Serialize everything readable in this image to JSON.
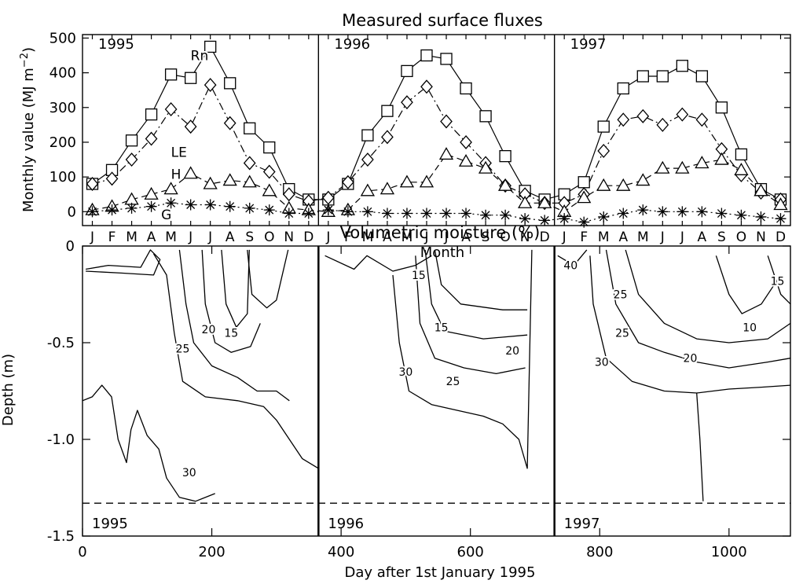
{
  "chart_data": [
    {
      "type": "line",
      "title": "Measured surface fluxes",
      "xlabel": "Month",
      "ylabel": "Monthly value (MJ m",
      "ylabel_sup": "−2",
      "ylabel_close": ")",
      "ylim": [
        -40,
        510
      ],
      "yticks": [
        0,
        100,
        200,
        300,
        400,
        500
      ],
      "month_labels": [
        "J",
        "F",
        "M",
        "A",
        "M",
        "J",
        "J",
        "A",
        "S",
        "O",
        "N",
        "D"
      ],
      "years": [
        "1995",
        "1996",
        "1997"
      ],
      "series": [
        {
          "name": "Rn",
          "marker": "square",
          "dash": "solid",
          "values": [
            80,
            120,
            205,
            280,
            395,
            385,
            475,
            370,
            240,
            185,
            65,
            35,
            35,
            80,
            220,
            290,
            405,
            450,
            440,
            355,
            275,
            160,
            60,
            35,
            50,
            85,
            245,
            355,
            390,
            390,
            420,
            390,
            300,
            165,
            65,
            35
          ]
        },
        {
          "name": "LE",
          "marker": "diamond",
          "dash": "dashdot",
          "values": [
            80,
            95,
            150,
            210,
            295,
            245,
            365,
            255,
            140,
            115,
            50,
            30,
            40,
            85,
            150,
            215,
            315,
            360,
            260,
            200,
            140,
            75,
            50,
            25,
            25,
            50,
            175,
            265,
            275,
            250,
            280,
            265,
            180,
            105,
            55,
            35
          ]
        },
        {
          "name": "H",
          "marker": "triangle",
          "dash": "dashed",
          "values": [
            5,
            15,
            35,
            50,
            65,
            110,
            80,
            90,
            85,
            60,
            10,
            5,
            0,
            5,
            60,
            65,
            85,
            85,
            165,
            145,
            125,
            75,
            25,
            25,
            0,
            40,
            75,
            75,
            90,
            125,
            125,
            140,
            150,
            120,
            60,
            20
          ]
        },
        {
          "name": "G",
          "marker": "star",
          "dash": "dotted",
          "values": [
            0,
            5,
            10,
            15,
            25,
            20,
            20,
            15,
            10,
            5,
            -5,
            -5,
            5,
            0,
            0,
            -5,
            -5,
            -5,
            -5,
            -5,
            -10,
            -10,
            -20,
            -25,
            -20,
            -30,
            -15,
            -5,
            5,
            0,
            0,
            0,
            -5,
            -10,
            -15,
            -20
          ]
        }
      ]
    },
    {
      "type": "contour",
      "title": "Volumetric moisture (%)",
      "xlabel": "Day after 1st January 1995",
      "ylabel": "Depth (m)",
      "xlim": [
        0,
        1095
      ],
      "ylim": [
        -1.5,
        0
      ],
      "xticks": [
        0,
        200,
        400,
        600,
        800,
        1000
      ],
      "yticks": [
        0,
        -0.5,
        -1.0,
        -1.5
      ],
      "ytick_labels": [
        "0",
        "-0.5",
        "-1.0",
        "-1.5"
      ],
      "year_boundaries": [
        365,
        730
      ],
      "year_labels": [
        "1995",
        "1996",
        "1997"
      ],
      "reference_depth": -1.33,
      "contour_labels": [
        {
          "text": "15",
          "day": 230,
          "depth": -0.45
        },
        {
          "text": "20",
          "day": 195,
          "depth": -0.43
        },
        {
          "text": "25",
          "day": 155,
          "depth": -0.53
        },
        {
          "text": "30",
          "day": 165,
          "depth": -1.17
        },
        {
          "text": "15",
          "day": 520,
          "depth": -0.15
        },
        {
          "text": "15",
          "day": 555,
          "depth": -0.42
        },
        {
          "text": "20",
          "day": 665,
          "depth": -0.54
        },
        {
          "text": "25",
          "day": 573,
          "depth": -0.7
        },
        {
          "text": "30",
          "day": 500,
          "depth": -0.65
        },
        {
          "text": "40",
          "day": 755,
          "depth": -0.1
        },
        {
          "text": "25",
          "day": 832,
          "depth": -0.25
        },
        {
          "text": "25",
          "day": 835,
          "depth": -0.45
        },
        {
          "text": "30",
          "day": 803,
          "depth": -0.6
        },
        {
          "text": "20",
          "day": 940,
          "depth": -0.58
        },
        {
          "text": "10",
          "day": 1032,
          "depth": -0.42
        },
        {
          "text": "15",
          "day": 1075,
          "depth": -0.18
        }
      ],
      "contours": [
        {
          "level": "40",
          "points": [
            [
              5,
              -0.12
            ],
            [
              40,
              -0.1
            ],
            [
              90,
              -0.11
            ],
            [
              105,
              -0.02
            ],
            [
              120,
              -0.07
            ],
            [
              110,
              -0.15
            ],
            [
              60,
              -0.14
            ],
            [
              5,
              -0.13
            ]
          ]
        },
        {
          "level": "30",
          "points": [
            [
              110,
              -0.04
            ],
            [
              130,
              -0.15
            ],
            [
              142,
              -0.45
            ],
            [
              155,
              -0.7
            ],
            [
              190,
              -0.78
            ],
            [
              240,
              -0.8
            ],
            [
              280,
              -0.83
            ],
            [
              300,
              -0.9
            ],
            [
              320,
              -1.0
            ],
            [
              340,
              -1.1
            ],
            [
              365,
              -1.15
            ]
          ]
        },
        {
          "level": "25",
          "points": [
            [
              150,
              -0.02
            ],
            [
              160,
              -0.3
            ],
            [
              172,
              -0.5
            ],
            [
              200,
              -0.62
            ],
            [
              240,
              -0.68
            ],
            [
              270,
              -0.75
            ],
            [
              300,
              -0.75
            ],
            [
              320,
              -0.8
            ]
          ]
        },
        {
          "level": "20",
          "points": [
            [
              185,
              -0.02
            ],
            [
              190,
              -0.3
            ],
            [
              205,
              -0.5
            ],
            [
              230,
              -0.55
            ],
            [
              260,
              -0.52
            ],
            [
              275,
              -0.4
            ]
          ]
        },
        {
          "level": "15",
          "points": [
            [
              215,
              -0.02
            ],
            [
              222,
              -0.3
            ],
            [
              238,
              -0.42
            ],
            [
              255,
              -0.35
            ],
            [
              258,
              -0.02
            ]
          ]
        },
        {
          "level": "30",
          "points": [
            [
              0,
              -0.8
            ],
            [
              15,
              -0.78
            ],
            [
              30,
              -0.72
            ],
            [
              45,
              -0.78
            ],
            [
              55,
              -1.0
            ],
            [
              68,
              -1.12
            ],
            [
              75,
              -0.95
            ],
            [
              85,
              -0.85
            ],
            [
              100,
              -0.98
            ],
            [
              118,
              -1.05
            ],
            [
              130,
              -1.2
            ],
            [
              150,
              -1.3
            ],
            [
              175,
              -1.32
            ],
            [
              205,
              -1.28
            ]
          ]
        },
        {
          "level": "30",
          "points": [
            [
              255,
              -0.02
            ],
            [
              262,
              -0.25
            ],
            [
              285,
              -0.32
            ],
            [
              300,
              -0.28
            ],
            [
              318,
              -0.02
            ]
          ]
        },
        {
          "level": "30",
          "points": [
            [
              375,
              -0.05
            ],
            [
              420,
              -0.12
            ],
            [
              440,
              -0.05
            ],
            [
              480,
              -0.13
            ],
            [
              515,
              -0.1
            ],
            [
              540,
              -0.05
            ]
          ]
        },
        {
          "level": "30",
          "points": [
            [
              480,
              -0.15
            ],
            [
              490,
              -0.5
            ],
            [
              505,
              -0.75
            ],
            [
              540,
              -0.82
            ],
            [
              580,
              -0.85
            ],
            [
              620,
              -0.88
            ],
            [
              650,
              -0.92
            ],
            [
              675,
              -1.0
            ],
            [
              688,
              -1.15
            ],
            [
              692,
              -0.5
            ],
            [
              695,
              -0.02
            ]
          ]
        },
        {
          "level": "25",
          "points": [
            [
              515,
              -0.05
            ],
            [
              522,
              -0.4
            ],
            [
              545,
              -0.58
            ],
            [
              590,
              -0.63
            ],
            [
              640,
              -0.66
            ],
            [
              685,
              -0.63
            ]
          ]
        },
        {
          "level": "20",
          "points": [
            [
              530,
              -0.02
            ],
            [
              540,
              -0.3
            ],
            [
              560,
              -0.44
            ],
            [
              620,
              -0.48
            ],
            [
              688,
              -0.46
            ]
          ]
        },
        {
          "level": "15",
          "points": [
            [
              545,
              -0.02
            ],
            [
              555,
              -0.2
            ],
            [
              585,
              -0.3
            ],
            [
              650,
              -0.33
            ],
            [
              688,
              -0.33
            ]
          ]
        },
        {
          "level": "40",
          "points": [
            [
              735,
              -0.05
            ],
            [
              760,
              -0.1
            ],
            [
              780,
              -0.02
            ]
          ]
        },
        {
          "level": "30",
          "points": [
            [
              785,
              -0.05
            ],
            [
              790,
              -0.3
            ],
            [
              810,
              -0.58
            ],
            [
              850,
              -0.7
            ],
            [
              900,
              -0.75
            ],
            [
              950,
              -0.76
            ],
            [
              1000,
              -0.74
            ],
            [
              1050,
              -0.73
            ],
            [
              1095,
              -0.72
            ]
          ]
        },
        {
          "level": "25",
          "points": [
            [
              810,
              -0.02
            ],
            [
              825,
              -0.3
            ],
            [
              860,
              -0.5
            ],
            [
              900,
              -0.55
            ],
            [
              950,
              -0.6
            ],
            [
              1000,
              -0.63
            ],
            [
              1060,
              -0.6
            ],
            [
              1095,
              -0.58
            ]
          ]
        },
        {
          "level": "20",
          "points": [
            [
              840,
              -0.02
            ],
            [
              860,
              -0.25
            ],
            [
              900,
              -0.4
            ],
            [
              950,
              -0.48
            ],
            [
              1000,
              -0.5
            ],
            [
              1060,
              -0.48
            ],
            [
              1095,
              -0.4
            ]
          ]
        },
        {
          "level": "10",
          "points": [
            [
              980,
              -0.05
            ],
            [
              1000,
              -0.25
            ],
            [
              1020,
              -0.35
            ],
            [
              1050,
              -0.3
            ],
            [
              1070,
              -0.2
            ]
          ]
        },
        {
          "level": "15",
          "points": [
            [
              1060,
              -0.05
            ],
            [
              1080,
              -0.25
            ],
            [
              1095,
              -0.3
            ]
          ]
        },
        {
          "level": "30",
          "points": [
            [
              950,
              -0.76
            ],
            [
              955,
              -1.0
            ],
            [
              960,
              -1.32
            ]
          ]
        }
      ]
    }
  ]
}
